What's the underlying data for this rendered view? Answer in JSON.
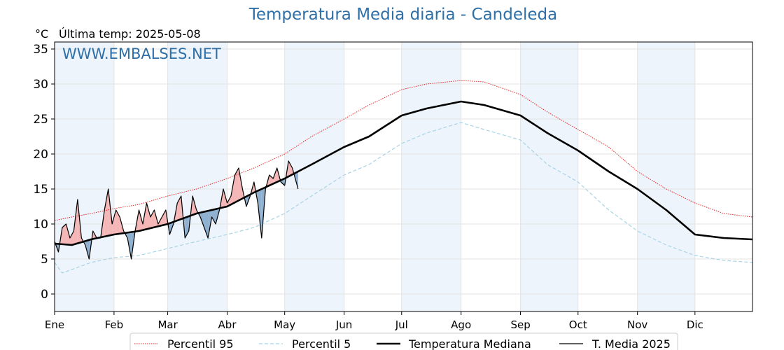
{
  "chart_data": {
    "type": "line",
    "title": "Temperatura Media diaria - Candeleda",
    "y_unit": "°C",
    "last_temp_label": "Última temp: 2025-05-08",
    "watermark": "WWW.EMBALSES.NET",
    "ylim": [
      -2.5,
      36
    ],
    "yticks": [
      0,
      5,
      10,
      15,
      20,
      25,
      30,
      35
    ],
    "x_range_days": [
      1,
      365
    ],
    "month_ticks": [
      {
        "label": "Ene",
        "day": 1
      },
      {
        "label": "Feb",
        "day": 32
      },
      {
        "label": "Mar",
        "day": 60
      },
      {
        "label": "Abr",
        "day": 91
      },
      {
        "label": "May",
        "day": 121
      },
      {
        "label": "Jun",
        "day": 152
      },
      {
        "label": "Jul",
        "day": 182
      },
      {
        "label": "Ago",
        "day": 213
      },
      {
        "label": "Sep",
        "day": 244
      },
      {
        "label": "Oct",
        "day": 274
      },
      {
        "label": "Nov",
        "day": 305
      },
      {
        "label": "Dic",
        "day": 335
      }
    ],
    "shaded_month_bands": [
      [
        1,
        32
      ],
      [
        60,
        91
      ],
      [
        121,
        152
      ],
      [
        182,
        213
      ],
      [
        244,
        274
      ],
      [
        305,
        335
      ]
    ],
    "grid": true,
    "legend_position": "bottom-center",
    "colors": {
      "p95": "#e32626",
      "p5": "#a8d4e6",
      "median": "#000000",
      "current": "#000000",
      "above_fill": "#f4b6b6",
      "below_fill": "#8fb0cf",
      "band": "#eef4fb",
      "title": "#2e6fa7"
    },
    "series": [
      {
        "name": "Percentil 95",
        "style": "dotted",
        "x": [
          1,
          10,
          20,
          32,
          45,
          60,
          75,
          91,
          105,
          121,
          135,
          152,
          165,
          182,
          195,
          213,
          225,
          244,
          258,
          274,
          290,
          305,
          320,
          335,
          350,
          365
        ],
        "y": [
          10.5,
          11,
          11.5,
          12.2,
          12.8,
          14,
          15,
          16.5,
          18,
          20,
          22.5,
          25,
          27,
          29.2,
          30,
          30.5,
          30.3,
          28.5,
          26,
          23.5,
          21,
          17.5,
          15,
          13,
          11.5,
          11
        ]
      },
      {
        "name": "Percentil 5",
        "style": "dashed",
        "x": [
          1,
          5,
          10,
          20,
          32,
          45,
          60,
          75,
          91,
          105,
          121,
          135,
          152,
          165,
          182,
          195,
          213,
          225,
          244,
          258,
          274,
          290,
          305,
          320,
          335,
          350,
          365
        ],
        "y": [
          4.5,
          3,
          3.5,
          4.5,
          5.2,
          5.5,
          6.5,
          7.5,
          8.5,
          9.5,
          11.5,
          14,
          17,
          18.5,
          21.5,
          23,
          24.5,
          23.5,
          22,
          18.5,
          16,
          12,
          9,
          7,
          5.5,
          4.8,
          4.5
        ]
      },
      {
        "name": "Temperatura Mediana",
        "style": "solid-thick",
        "x": [
          1,
          10,
          20,
          32,
          45,
          60,
          75,
          91,
          105,
          121,
          135,
          152,
          165,
          182,
          195,
          213,
          225,
          244,
          258,
          274,
          290,
          305,
          320,
          335,
          350,
          365
        ],
        "y": [
          7.2,
          7,
          7.8,
          8.5,
          9,
          10,
          11.5,
          12.5,
          14.5,
          16.5,
          18.5,
          21,
          22.5,
          25.5,
          26.5,
          27.5,
          27,
          25.5,
          23,
          20.5,
          17.5,
          15,
          12,
          8.5,
          8,
          7.8
        ]
      },
      {
        "name": "T. Media 2025",
        "style": "solid-thin",
        "x": [
          1,
          3,
          5,
          7,
          9,
          11,
          13,
          15,
          17,
          19,
          21,
          23,
          25,
          27,
          29,
          31,
          33,
          35,
          37,
          39,
          41,
          43,
          45,
          47,
          49,
          51,
          53,
          55,
          57,
          59,
          61,
          63,
          65,
          67,
          69,
          71,
          73,
          75,
          77,
          79,
          81,
          83,
          85,
          87,
          89,
          91,
          93,
          95,
          97,
          99,
          101,
          103,
          105,
          107,
          109,
          111,
          113,
          115,
          117,
          119,
          121,
          123,
          125,
          127,
          128
        ],
        "y": [
          7.5,
          6,
          9.5,
          10,
          8,
          9,
          13.5,
          8,
          7,
          5,
          9,
          8,
          8,
          12,
          15,
          10,
          12,
          11,
          9,
          8,
          5,
          9,
          12,
          10,
          13,
          11,
          12,
          10,
          11,
          12,
          8.5,
          10,
          13,
          14,
          8,
          9,
          14,
          12,
          11,
          9.5,
          8,
          11,
          10,
          12,
          15,
          13,
          14,
          17,
          18,
          15,
          12.5,
          14,
          16,
          13,
          8,
          15,
          17,
          16.5,
          18,
          16,
          15.5,
          19,
          18,
          16,
          15
        ]
      }
    ]
  }
}
